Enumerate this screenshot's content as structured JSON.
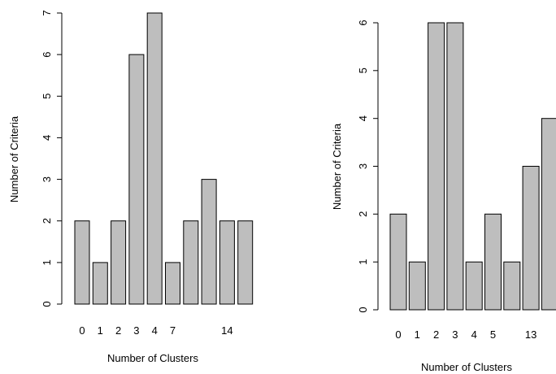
{
  "chart_data": [
    {
      "type": "bar",
      "categories": [
        "0",
        "1",
        "2",
        "3",
        "4",
        "7",
        "",
        "",
        "14",
        ""
      ],
      "values": [
        2,
        1,
        2,
        6,
        7,
        1,
        2,
        3,
        2,
        2
      ],
      "xlabel": "Number of Clusters",
      "ylabel": "Number of Criteria",
      "ylim": [
        0,
        7
      ],
      "yticks": [
        0,
        1,
        2,
        3,
        4,
        5,
        6,
        7
      ],
      "grid": false,
      "bar_color": "#bebebe"
    },
    {
      "type": "bar",
      "categories": [
        "0",
        "1",
        "2",
        "3",
        "4",
        "5",
        "",
        "13",
        ""
      ],
      "values": [
        2,
        1,
        6,
        6,
        1,
        2,
        1,
        3,
        4
      ],
      "xlabel": "Number of Clusters",
      "ylabel": "Number of Criteria",
      "ylim": [
        0,
        6
      ],
      "yticks": [
        0,
        1,
        2,
        3,
        4,
        5,
        6
      ],
      "grid": false,
      "bar_color": "#bebebe"
    }
  ]
}
